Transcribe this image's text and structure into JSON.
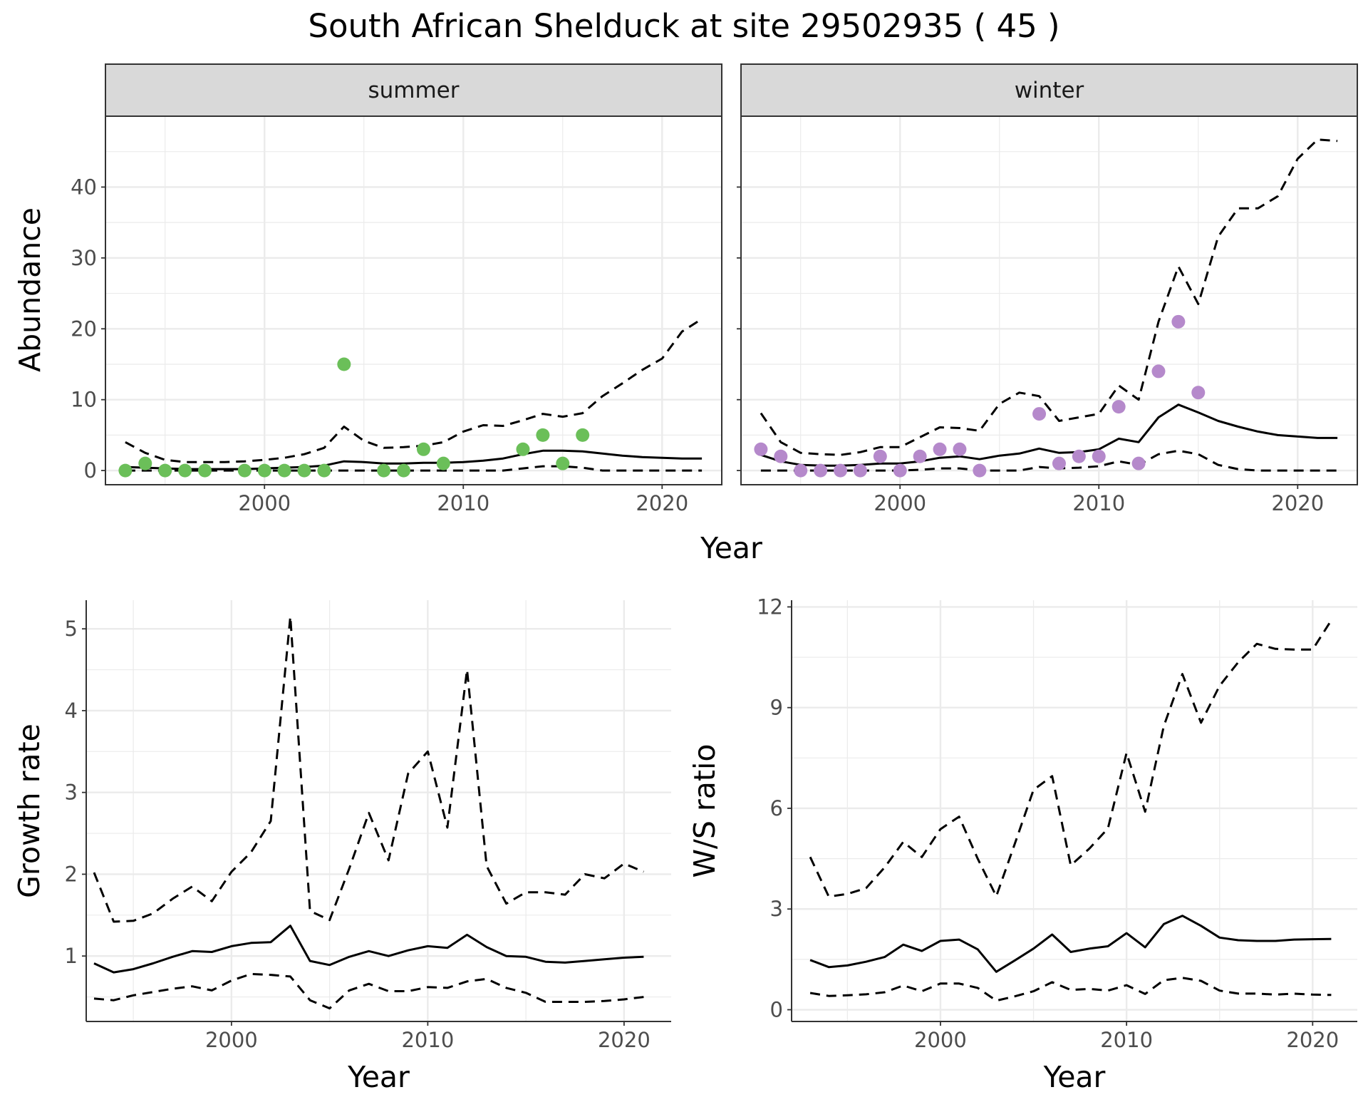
{
  "figure": {
    "title": "South African Shelduck at site 29502935 ( 45 )"
  },
  "colors": {
    "summer_points": "#6bbf59",
    "winter_points": "#b589cb",
    "line": "#000000",
    "grid": "#ebebeb",
    "strip": "#d9d9d9",
    "panel_border": "#333333"
  },
  "chart_data": [
    {
      "type": "scatter",
      "name": "abundance",
      "ylabel": "Abundance",
      "xlabel": "Year",
      "xlim": [
        1992,
        2023
      ],
      "ylim": [
        -2,
        50
      ],
      "x_ticks": [
        2000,
        2010,
        2020
      ],
      "y_ticks": [
        0,
        10,
        20,
        30,
        40
      ],
      "grid": true,
      "line_style": {
        "estimate": "solid",
        "lower": "dashed",
        "upper": "dashed"
      },
      "facets": [
        {
          "label": "summer",
          "points": {
            "x": [
              1993,
              1994,
              1995,
              1996,
              1997,
              1999,
              2000,
              2001,
              2002,
              2003,
              2004,
              2006,
              2007,
              2008,
              2009,
              2013,
              2014,
              2015,
              2016
            ],
            "y": [
              0,
              1,
              0,
              0,
              0,
              0,
              0,
              0,
              0,
              0,
              15,
              0,
              0,
              3,
              1,
              3,
              5,
              1,
              5
            ]
          },
          "years": [
            1993,
            1994,
            1995,
            1996,
            1997,
            1998,
            1999,
            2000,
            2001,
            2002,
            2003,
            2004,
            2005,
            2006,
            2007,
            2008,
            2009,
            2010,
            2011,
            2012,
            2013,
            2014,
            2015,
            2016,
            2017,
            2018,
            2019,
            2020,
            2021,
            2022
          ],
          "estimate": [
            0.5,
            0.4,
            0.3,
            0.2,
            0.2,
            0.2,
            0.2,
            0.3,
            0.4,
            0.5,
            0.7,
            1.3,
            1.2,
            1.0,
            1.0,
            1.1,
            1.1,
            1.2,
            1.4,
            1.7,
            2.3,
            2.8,
            2.8,
            2.7,
            2.4,
            2.1,
            1.9,
            1.8,
            1.7,
            1.7
          ],
          "lower": [
            0,
            0,
            0,
            0,
            0,
            0,
            0,
            0,
            0,
            0,
            0,
            0,
            0,
            0,
            0,
            0,
            0,
            0,
            0,
            0,
            0.3,
            0.6,
            0.6,
            0.4,
            0,
            0,
            0,
            0,
            0,
            0
          ],
          "upper": [
            4,
            2.5,
            1.5,
            1.2,
            1.2,
            1.2,
            1.3,
            1.5,
            1.8,
            2.3,
            3.2,
            6.2,
            4.2,
            3.2,
            3.3,
            3.5,
            4.0,
            5.5,
            6.4,
            6.3,
            7.1,
            8.0,
            7.6,
            8.1,
            10.5,
            12.3,
            14.2,
            15.8,
            19.6,
            21.4
          ]
        },
        {
          "label": "winter",
          "points": {
            "x": [
              1993,
              1994,
              1995,
              1996,
              1997,
              1998,
              1999,
              2000,
              2001,
              2002,
              2003,
              2004,
              2007,
              2008,
              2009,
              2010,
              2011,
              2012,
              2013,
              2014,
              2015
            ],
            "y": [
              3,
              2,
              0,
              0,
              0,
              0,
              2,
              0,
              2,
              3,
              3,
              0,
              8,
              1,
              2,
              2,
              9,
              1,
              14,
              21,
              11
            ]
          },
          "years": [
            1993,
            1994,
            1995,
            1996,
            1997,
            1998,
            1999,
            2000,
            2001,
            2002,
            2003,
            2004,
            2005,
            2006,
            2007,
            2008,
            2009,
            2010,
            2011,
            2012,
            2013,
            2014,
            2015,
            2016,
            2017,
            2018,
            2019,
            2020,
            2021,
            2022
          ],
          "estimate": [
            2.2,
            1.3,
            0.8,
            0.7,
            0.7,
            0.8,
            1.0,
            1.0,
            1.3,
            1.8,
            2.0,
            1.6,
            2.1,
            2.4,
            3.1,
            2.5,
            2.6,
            3.0,
            4.5,
            4.0,
            7.5,
            9.3,
            8.2,
            7.0,
            6.2,
            5.5,
            5.0,
            4.8,
            4.6,
            4.6
          ],
          "lower": [
            0,
            0,
            0,
            0,
            0,
            0,
            0,
            0,
            0.1,
            0.3,
            0.3,
            0,
            0,
            0,
            0.5,
            0.3,
            0.4,
            0.6,
            1.3,
            0.8,
            2.3,
            2.8,
            2.3,
            0.8,
            0.2,
            0,
            0,
            0,
            0,
            0
          ],
          "upper": [
            8.1,
            4.0,
            2.5,
            2.3,
            2.2,
            2.6,
            3.3,
            3.3,
            4.7,
            6.1,
            6.0,
            5.6,
            9.4,
            11.0,
            10.5,
            7.0,
            7.5,
            8.0,
            12.0,
            10.0,
            21.0,
            28.8,
            23.5,
            33.0,
            37.0,
            37.0,
            38.7,
            44.0,
            46.7,
            46.5
          ]
        }
      ]
    },
    {
      "type": "line",
      "name": "growth-rate",
      "ylabel": "Growth rate",
      "xlabel": "Year",
      "xlim": [
        1992.6,
        2022.4
      ],
      "ylim": [
        0.2,
        5.35
      ],
      "x_ticks": [
        2000,
        2010,
        2020
      ],
      "y_ticks": [
        1,
        2,
        3,
        4,
        5
      ],
      "grid": true,
      "line_style": {
        "estimate": "solid",
        "lower": "dashed",
        "upper": "dashed"
      },
      "x": [
        1993,
        1994,
        1995,
        1996,
        1997,
        1998,
        1999,
        2000,
        2001,
        2002,
        2003,
        2004,
        2005,
        2006,
        2007,
        2008,
        2009,
        2010,
        2011,
        2012,
        2013,
        2014,
        2015,
        2016,
        2017,
        2018,
        2019,
        2020,
        2021
      ],
      "estimate": [
        0.91,
        0.8,
        0.84,
        0.91,
        0.99,
        1.06,
        1.05,
        1.12,
        1.16,
        1.17,
        1.37,
        0.94,
        0.89,
        0.99,
        1.06,
        1.0,
        1.07,
        1.12,
        1.1,
        1.26,
        1.11,
        1.0,
        0.99,
        0.93,
        0.92,
        0.94,
        0.96,
        0.98,
        0.99
      ],
      "lower": [
        0.48,
        0.46,
        0.52,
        0.56,
        0.6,
        0.63,
        0.58,
        0.7,
        0.78,
        0.77,
        0.75,
        0.46,
        0.36,
        0.58,
        0.66,
        0.57,
        0.57,
        0.62,
        0.61,
        0.69,
        0.72,
        0.61,
        0.55,
        0.44,
        0.44,
        0.44,
        0.45,
        0.47,
        0.5
      ],
      "upper": [
        2.02,
        1.42,
        1.43,
        1.52,
        1.7,
        1.85,
        1.67,
        2.03,
        2.27,
        2.65,
        5.15,
        1.55,
        1.44,
        2.07,
        2.75,
        2.17,
        3.23,
        3.5,
        2.57,
        4.5,
        2.1,
        1.64,
        1.78,
        1.78,
        1.75,
        2.0,
        1.95,
        2.13,
        2.03
      ]
    },
    {
      "type": "line",
      "name": "ws-ratio",
      "ylabel": "W/S ratio",
      "xlabel": "Year",
      "xlim": [
        1992.0,
        2022.4
      ],
      "ylim": [
        -0.35,
        12.2
      ],
      "x_ticks": [
        2000,
        2010,
        2020
      ],
      "y_ticks": [
        0,
        3,
        6,
        9,
        12
      ],
      "grid": true,
      "line_style": {
        "estimate": "solid",
        "lower": "dashed",
        "upper": "dashed"
      },
      "x": [
        1993,
        1994,
        1995,
        1996,
        1997,
        1998,
        1999,
        2000,
        2001,
        2002,
        2003,
        2004,
        2005,
        2006,
        2007,
        2008,
        2009,
        2010,
        2011,
        2012,
        2013,
        2014,
        2015,
        2016,
        2017,
        2018,
        2019,
        2020,
        2021
      ],
      "estimate": [
        1.48,
        1.27,
        1.32,
        1.43,
        1.57,
        1.94,
        1.75,
        2.05,
        2.09,
        1.8,
        1.13,
        1.47,
        1.82,
        2.24,
        1.72,
        1.82,
        1.89,
        2.28,
        1.86,
        2.55,
        2.8,
        2.5,
        2.15,
        2.07,
        2.05,
        2.05,
        2.09,
        2.1,
        2.11
      ],
      "lower": [
        0.5,
        0.41,
        0.43,
        0.46,
        0.52,
        0.72,
        0.55,
        0.78,
        0.78,
        0.65,
        0.27,
        0.4,
        0.55,
        0.82,
        0.59,
        0.62,
        0.57,
        0.73,
        0.47,
        0.88,
        0.95,
        0.86,
        0.57,
        0.48,
        0.48,
        0.45,
        0.48,
        0.45,
        0.44
      ],
      "upper": [
        4.55,
        3.37,
        3.45,
        3.62,
        4.24,
        5.0,
        4.55,
        5.38,
        5.75,
        4.5,
        3.38,
        4.95,
        6.55,
        6.96,
        4.3,
        4.8,
        5.4,
        7.65,
        5.9,
        8.45,
        10.0,
        8.55,
        9.65,
        10.35,
        10.9,
        10.75,
        10.73,
        10.73,
        11.6
      ]
    }
  ]
}
